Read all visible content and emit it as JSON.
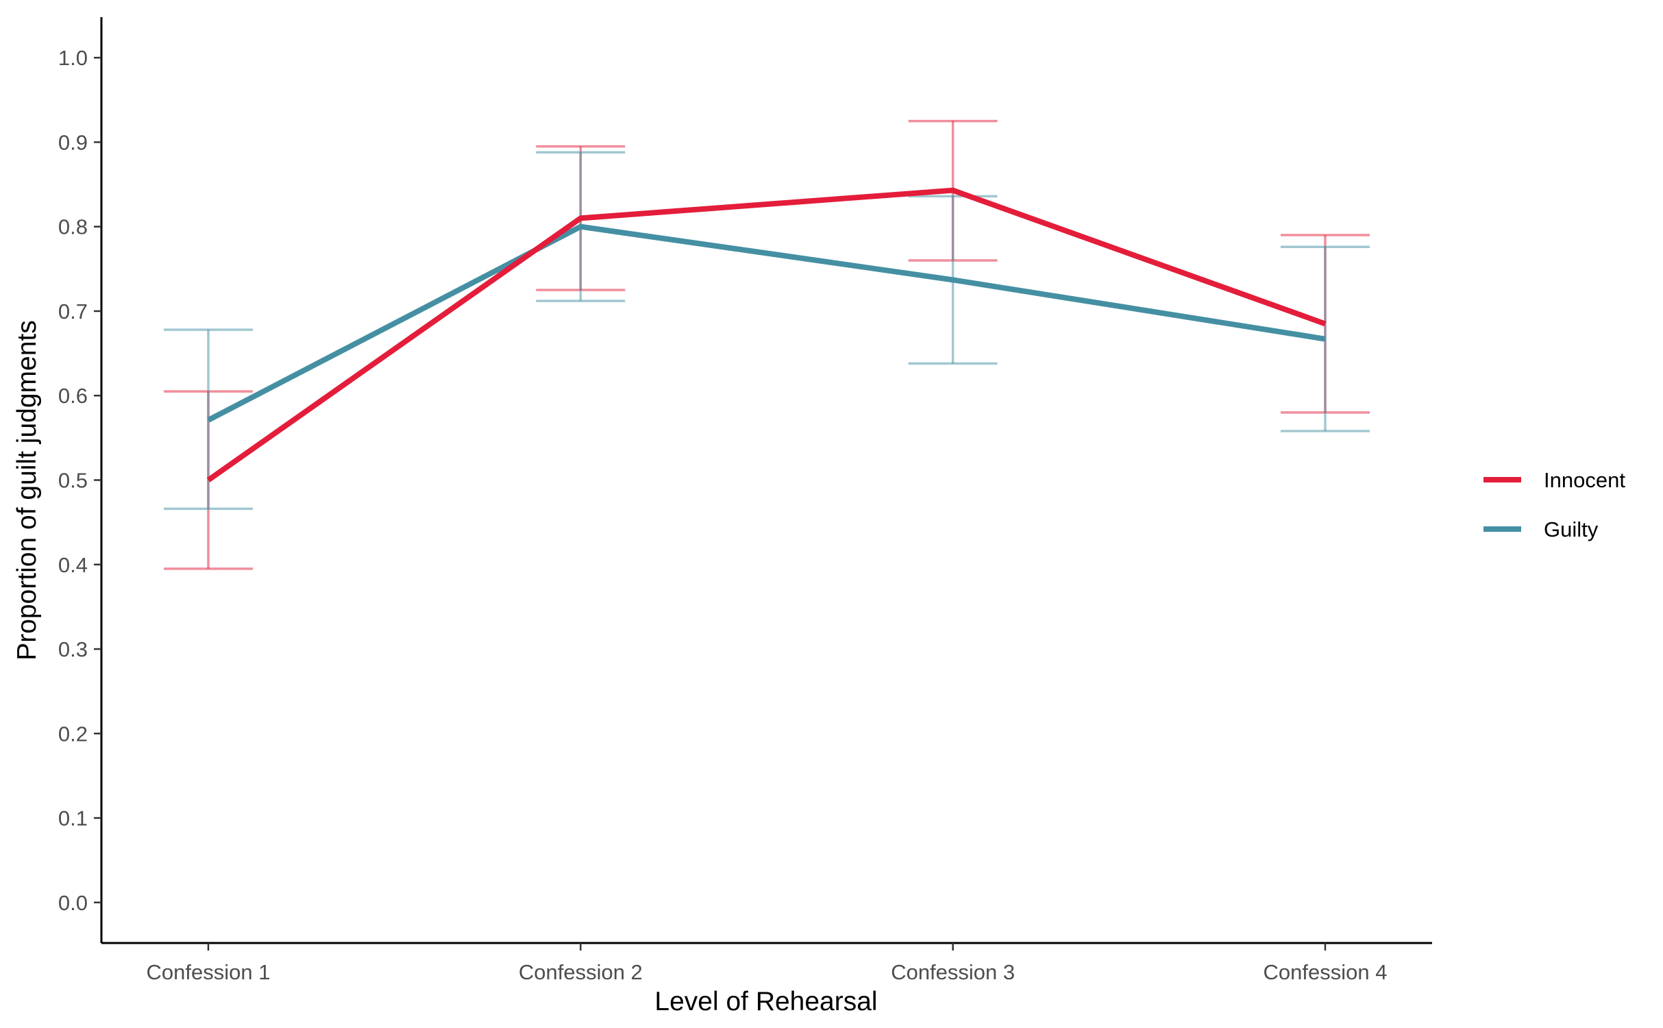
{
  "chart_data": {
    "type": "line",
    "categories": [
      "Confession 1",
      "Confession 2",
      "Confession 3",
      "Confession 4"
    ],
    "series": [
      {
        "name": "Innocent",
        "color": "#e31d3a",
        "values": [
          0.5,
          0.81,
          0.843,
          0.685
        ],
        "lower": [
          0.395,
          0.725,
          0.76,
          0.58
        ],
        "upper": [
          0.605,
          0.895,
          0.925,
          0.79
        ]
      },
      {
        "name": "Guilty",
        "color": "#458fa3",
        "values": [
          0.571,
          0.8,
          0.737,
          0.667
        ],
        "lower": [
          0.466,
          0.712,
          0.638,
          0.558
        ],
        "upper": [
          0.678,
          0.888,
          0.836,
          0.776
        ]
      }
    ],
    "xlabel": "Level of Rehearsal",
    "ylabel": "Proportion of guilt judgments",
    "ylim": [
      -0.048,
      1.048
    ],
    "yticks": [
      "0.0",
      "0.1",
      "0.2",
      "0.3",
      "0.4",
      "0.5",
      "0.6",
      "0.7",
      "0.8",
      "0.9",
      "1.0"
    ],
    "grid": false,
    "legend_position": "right"
  }
}
